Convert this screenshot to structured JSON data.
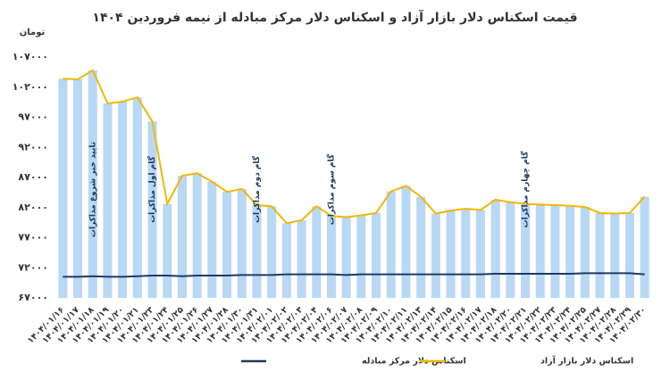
{
  "chart_data": {
    "type": "bar-line",
    "title": "قیمت اسکناس دلار بازار آزاد و اسکناس دلار مرکز مبادله از نیمه فروردین ۱۴۰۴",
    "y_label": "تومان",
    "categories": [
      "۱۴۰۴/۰۱/۱۶",
      "۱۴۰۴/۰۱/۱۷",
      "۱۴۰۴/۰۱/۱۸",
      "۱۴۰۴/۰۱/۱۹",
      "۱۴۰۴/۰۱/۲۰",
      "۱۴۰۴/۰۱/۲۱",
      "۱۴۰۴/۰۱/۲۳",
      "۱۴۰۴/۰۱/۲۴",
      "۱۴۰۴/۰۱/۲۵",
      "۱۴۰۴/۰۱/۲۶",
      "۱۴۰۴/۰۱/۲۷",
      "۱۴۰۴/۰۱/۲۸",
      "۱۴۰۴/۰۱/۳۰",
      "۱۴۰۴/۰۱/۳۱",
      "۱۴۰۴/۰۲/۰۱",
      "۱۴۰۴/۰۲/۰۲",
      "۱۴۰۴/۰۲/۰۳",
      "۱۴۰۴/۰۲/۰۴",
      "۱۴۰۴/۰۲/۰۶",
      "۱۴۰۴/۰۲/۰۷",
      "۱۴۰۴/۰۲/۰۸",
      "۱۴۰۴/۰۲/۰۹",
      "۱۴۰۴/۰۲/۱۰",
      "۱۴۰۴/۰۲/۱۱",
      "۱۴۰۴/۰۲/۱۳",
      "۱۴۰۴/۰۲/۱۴",
      "۱۴۰۴/۰۲/۱۵",
      "۱۴۰۴/۰۲/۱۶",
      "۱۴۰۴/۰۲/۱۷",
      "۱۴۰۴/۰۲/۱۸",
      "۱۴۰۴/۰۲/۲۰",
      "۱۴۰۴/۰۲/۲۱",
      "۱۴۰۴/۰۲/۲۲",
      "۱۴۰۴/۰۲/۲۳",
      "۱۴۰۴/۰۲/۲۴",
      "۱۴۰۴/۰۲/۲۵",
      "۱۴۰۴/۰۲/۲۷",
      "۱۴۰۴/۰۲/۲۸",
      "۱۴۰۴/۰۲/۲۹",
      "۱۴۰۴/۰۲/۳۰"
    ],
    "series": [
      {
        "name": "اسکناس دلار مرکز مبادله",
        "color": "#1f3b63",
        "values": [
          70500,
          70500,
          70600,
          70500,
          70500,
          70600,
          70700,
          70700,
          70600,
          70700,
          70700,
          70700,
          70800,
          70800,
          70800,
          70900,
          70900,
          70900,
          70900,
          70800,
          70900,
          70900,
          70900,
          70900,
          70900,
          70900,
          70900,
          70900,
          70900,
          71000,
          71000,
          71000,
          71000,
          71000,
          71000,
          71100,
          71100,
          71100,
          71100,
          70900
        ]
      },
      {
        "name": "اسکناس دلار بازار آزاد",
        "color": "#f2b705",
        "bar_color": "#b9d8f4",
        "values": [
          103400,
          103300,
          104800,
          99300,
          99600,
          100300,
          96300,
          82600,
          87300,
          87700,
          86300,
          84600,
          85100,
          82400,
          82200,
          79400,
          79900,
          82200,
          80600,
          80400,
          80700,
          81100,
          84700,
          85600,
          83800,
          81000,
          81500,
          81800,
          81600,
          83300,
          82900,
          82600,
          82500,
          82400,
          82300,
          82100,
          81100,
          81000,
          81100,
          83800
        ]
      }
    ],
    "ylim": [
      67000,
      107000
    ],
    "yticks": [
      {
        "value": 67000,
        "label": "۶۷۰۰۰"
      },
      {
        "value": 72000,
        "label": "۷۲۰۰۰"
      },
      {
        "value": 77000,
        "label": "۷۷۰۰۰"
      },
      {
        "value": 82000,
        "label": "۸۲۰۰۰"
      },
      {
        "value": 87000,
        "label": "۸۷۰۰۰"
      },
      {
        "value": 92000,
        "label": "۹۲۰۰۰"
      },
      {
        "value": 97000,
        "label": "۹۷۰۰۰"
      },
      {
        "value": 102000,
        "label": "۱۰۲۰۰۰"
      },
      {
        "value": 107000,
        "label": "۱۰۷۰۰۰"
      }
    ],
    "grid": false,
    "legend": "bottom",
    "annotations": [
      "تایید خبر شروع مذاکرات",
      "گام اول مذاکرات",
      "گام دوم مذاکرات",
      "گام سوم مذاکرات",
      "گام چهارم مذاکرات"
    ]
  }
}
